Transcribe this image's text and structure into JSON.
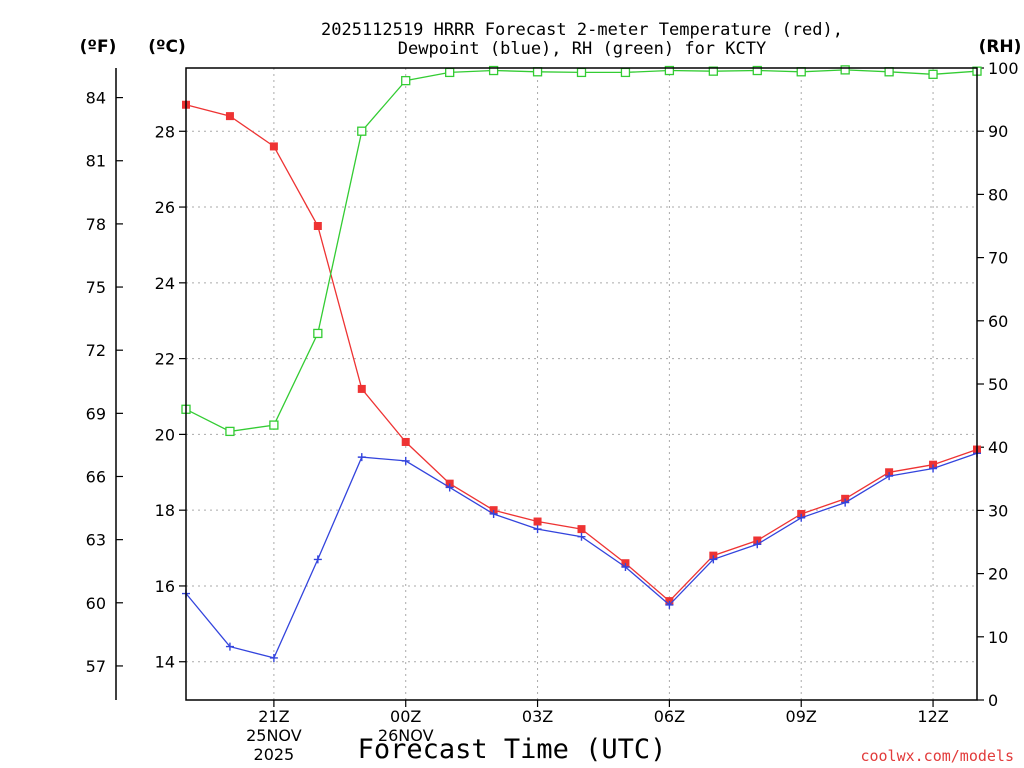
{
  "chart_data": {
    "type": "line",
    "title_lines": [
      "2025112519 HRRR Forecast 2-meter Temperature (red),",
      "Dewpoint (blue), RH (green) for KCTY"
    ],
    "xlabel": "Forecast Time (UTC)",
    "credit": "coolwx.com/models",
    "units": {
      "fahrenheit": "(ºF)",
      "celsius": "(ºC)",
      "rh": "(RH)"
    },
    "x": [
      19,
      20,
      21,
      22,
      23,
      24,
      25,
      26,
      27,
      28,
      29,
      30,
      31,
      32,
      33,
      34,
      35,
      36,
      37
    ],
    "xlim": [
      19,
      37
    ],
    "x_ticks": [
      {
        "x": 21,
        "lines": [
          "21Z",
          "25NOV",
          "2025"
        ]
      },
      {
        "x": 24,
        "lines": [
          "00Z",
          "26NOV"
        ]
      },
      {
        "x": 27,
        "lines": [
          "03Z"
        ]
      },
      {
        "x": 30,
        "lines": [
          "06Z"
        ]
      },
      {
        "x": 33,
        "lines": [
          "09Z"
        ]
      },
      {
        "x": 36,
        "lines": [
          "12Z"
        ]
      }
    ],
    "celsius_axis": {
      "ylim": [
        12.99,
        29.67
      ],
      "ticks": [
        14,
        16,
        18,
        20,
        22,
        24,
        26,
        28
      ]
    },
    "fahrenheit_ticks": [
      57,
      60,
      63,
      66,
      69,
      72,
      75,
      78,
      81,
      84
    ],
    "rh_axis": {
      "ylim": [
        0,
        100
      ],
      "ticks": [
        0,
        10,
        20,
        30,
        40,
        50,
        60,
        70,
        80,
        90,
        100
      ]
    },
    "series": [
      {
        "name": "Temperature",
        "axis": "celsius",
        "color": "#ee3333",
        "marker": "filled-square",
        "values": [
          28.7,
          28.4,
          27.6,
          25.5,
          21.2,
          19.8,
          18.7,
          18.0,
          17.7,
          17.5,
          16.6,
          15.6,
          16.8,
          17.2,
          17.9,
          18.3,
          19.0,
          19.2,
          19.6
        ]
      },
      {
        "name": "Dewpoint",
        "axis": "celsius",
        "color": "#3344dd",
        "marker": "plus",
        "values": [
          15.8,
          14.4,
          14.1,
          16.7,
          19.4,
          19.3,
          18.6,
          17.9,
          17.5,
          17.3,
          16.5,
          15.5,
          16.7,
          17.1,
          17.8,
          18.2,
          18.9,
          19.1,
          19.5
        ]
      },
      {
        "name": "RH",
        "axis": "rh",
        "color": "#33cc33",
        "marker": "open-square",
        "values": [
          46,
          42.5,
          43.5,
          58,
          90,
          98,
          99.3,
          99.6,
          99.4,
          99.3,
          99.3,
          99.6,
          99.5,
          99.6,
          99.4,
          99.7,
          99.4,
          99.0,
          99.5
        ]
      }
    ]
  }
}
